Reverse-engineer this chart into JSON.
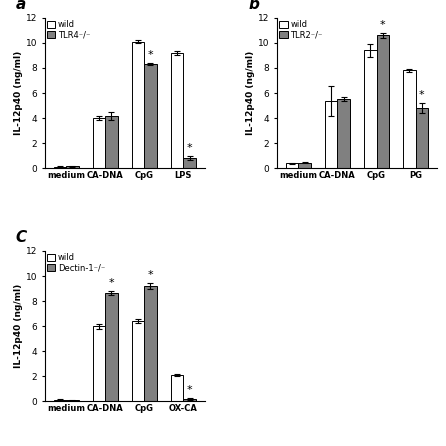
{
  "panel_a": {
    "label": "a",
    "categories": [
      "medium",
      "CA-DNA",
      "CpG",
      "LPS"
    ],
    "wild_values": [
      0.1,
      4.0,
      10.1,
      9.2
    ],
    "wild_errors": [
      0.05,
      0.15,
      0.1,
      0.15
    ],
    "ko_values": [
      0.15,
      4.15,
      8.3,
      0.8
    ],
    "ko_errors": [
      0.05,
      0.3,
      0.1,
      0.15
    ],
    "ko_label": "TLR4⁻/⁻",
    "ylim": [
      0,
      12
    ],
    "yticks": [
      0,
      2,
      4,
      6,
      8,
      10,
      12
    ],
    "star_wild": [],
    "star_ko": [
      "CpG",
      "LPS"
    ],
    "ylabel": "IL-12p40 (ng/ml)"
  },
  "panel_b": {
    "label": "b",
    "categories": [
      "medium",
      "CA-DNA",
      "CpG",
      "PG"
    ],
    "wild_values": [
      0.4,
      5.4,
      9.4,
      7.8
    ],
    "wild_errors": [
      0.05,
      1.2,
      0.5,
      0.15
    ],
    "ko_values": [
      0.45,
      5.5,
      10.6,
      4.8
    ],
    "ko_errors": [
      0.05,
      0.15,
      0.2,
      0.4
    ],
    "ko_label": "TLR2⁻/⁻",
    "ylim": [
      0,
      12
    ],
    "yticks": [
      0,
      2,
      4,
      6,
      8,
      10,
      12
    ],
    "star_wild": [],
    "star_ko": [
      "CpG",
      "PG"
    ],
    "ylabel": "IL-12p40 (ng/ml)"
  },
  "panel_c": {
    "label": "C",
    "categories": [
      "medium",
      "CA-DNA",
      "CpG",
      "OX-CA"
    ],
    "wild_values": [
      0.1,
      6.0,
      6.4,
      2.1
    ],
    "wild_errors": [
      0.1,
      0.2,
      0.15,
      0.1
    ],
    "ko_values": [
      0.1,
      8.65,
      9.2,
      0.2
    ],
    "ko_errors": [
      0.05,
      0.15,
      0.25,
      0.1
    ],
    "ko_label": "Dectin-1⁻/⁻",
    "ylim": [
      0,
      12
    ],
    "yticks": [
      0,
      2,
      4,
      6,
      8,
      10,
      12
    ],
    "star_wild": [],
    "star_ko": [
      "CA-DNA",
      "CpG",
      "OX-CA"
    ],
    "ylabel": "IL-12p40 (ng/ml)"
  },
  "wild_color": "white",
  "ko_color": "#808080",
  "bar_edge_color": "black",
  "bar_width": 0.32,
  "wild_legend": "wild",
  "figure_bg": "white"
}
